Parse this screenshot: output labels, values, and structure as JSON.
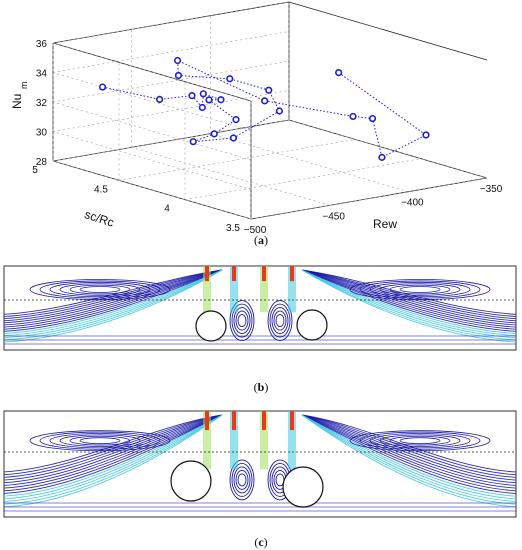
{
  "chart_data": {
    "type": "scatter",
    "projection": "3d",
    "xlabel": "Rew",
    "ylabel": "sc/Rc",
    "zlabel_main": "Nu",
    "zlabel_sub": "m",
    "xlim": [
      -500,
      -350
    ],
    "ylim": [
      3.5,
      5
    ],
    "zlim": [
      28,
      36
    ],
    "xticks": [
      "−500",
      "−450",
      "−400",
      "−350"
    ],
    "yticks": [
      "3.5",
      "4",
      "4.5",
      "5"
    ],
    "zticks": [
      "28",
      "30",
      "32",
      "34",
      "36"
    ],
    "grid": true,
    "marker_color": "#1c1cd0",
    "line_style": "dotted",
    "points": [
      {
        "x": -492,
        "y": 4.72,
        "z": 33.6
      },
      {
        "x": -470,
        "y": 4.55,
        "z": 32.8
      },
      {
        "x": -462,
        "y": 4.4,
        "z": 33.3
      },
      {
        "x": -468,
        "y": 4.25,
        "z": 33.0
      },
      {
        "x": -459,
        "y": 4.35,
        "z": 33.5
      },
      {
        "x": -452,
        "y": 4.3,
        "z": 33.1
      },
      {
        "x": -447,
        "y": 4.45,
        "z": 32.6
      },
      {
        "x": -455,
        "y": 4.15,
        "z": 32.2
      },
      {
        "x": -473,
        "y": 4.1,
        "z": 31.7
      },
      {
        "x": -478,
        "y": 4.2,
        "z": 31.0
      },
      {
        "x": -465,
        "y": 4.05,
        "z": 31.4
      },
      {
        "x": -440,
        "y": 4.0,
        "z": 32.9
      },
      {
        "x": -430,
        "y": 4.2,
        "z": 33.6
      },
      {
        "x": -438,
        "y": 4.4,
        "z": 34.0
      },
      {
        "x": -458,
        "y": 4.55,
        "z": 34.2
      },
      {
        "x": -446,
        "y": 4.7,
        "z": 34.6
      },
      {
        "x": -420,
        "y": 4.35,
        "z": 32.3
      },
      {
        "x": -410,
        "y": 3.8,
        "z": 32.5
      },
      {
        "x": -385,
        "y": 3.95,
        "z": 31.5
      },
      {
        "x": -400,
        "y": 3.7,
        "z": 29.8
      },
      {
        "x": -372,
        "y": 3.7,
        "z": 30.8
      },
      {
        "x": -352,
        "y": 4.6,
        "z": 32.3
      }
    ]
  },
  "panels": {
    "b": {
      "cylinders_mid_fraction": 0.58,
      "colors": {
        "stream": "#1a1aa8",
        "fast_low": "#3fc8e0",
        "fast_mid": "#9ee05a",
        "hot": "#e83a1a",
        "wall": "#222222"
      }
    },
    "c": {
      "cylinders_mid_fraction": 0.6,
      "colors": {
        "stream": "#1a1aa8",
        "fast_low": "#3fc8e0",
        "fast_mid": "#9ee05a",
        "hot": "#e83a1a",
        "wall": "#222222"
      }
    }
  },
  "captions": {
    "a_open": "(",
    "a_letter": "a",
    "a_close": ")",
    "b_open": "(",
    "b_letter": "b",
    "b_close": ")",
    "c_open": "(",
    "c_letter": "c",
    "c_close": ")"
  }
}
